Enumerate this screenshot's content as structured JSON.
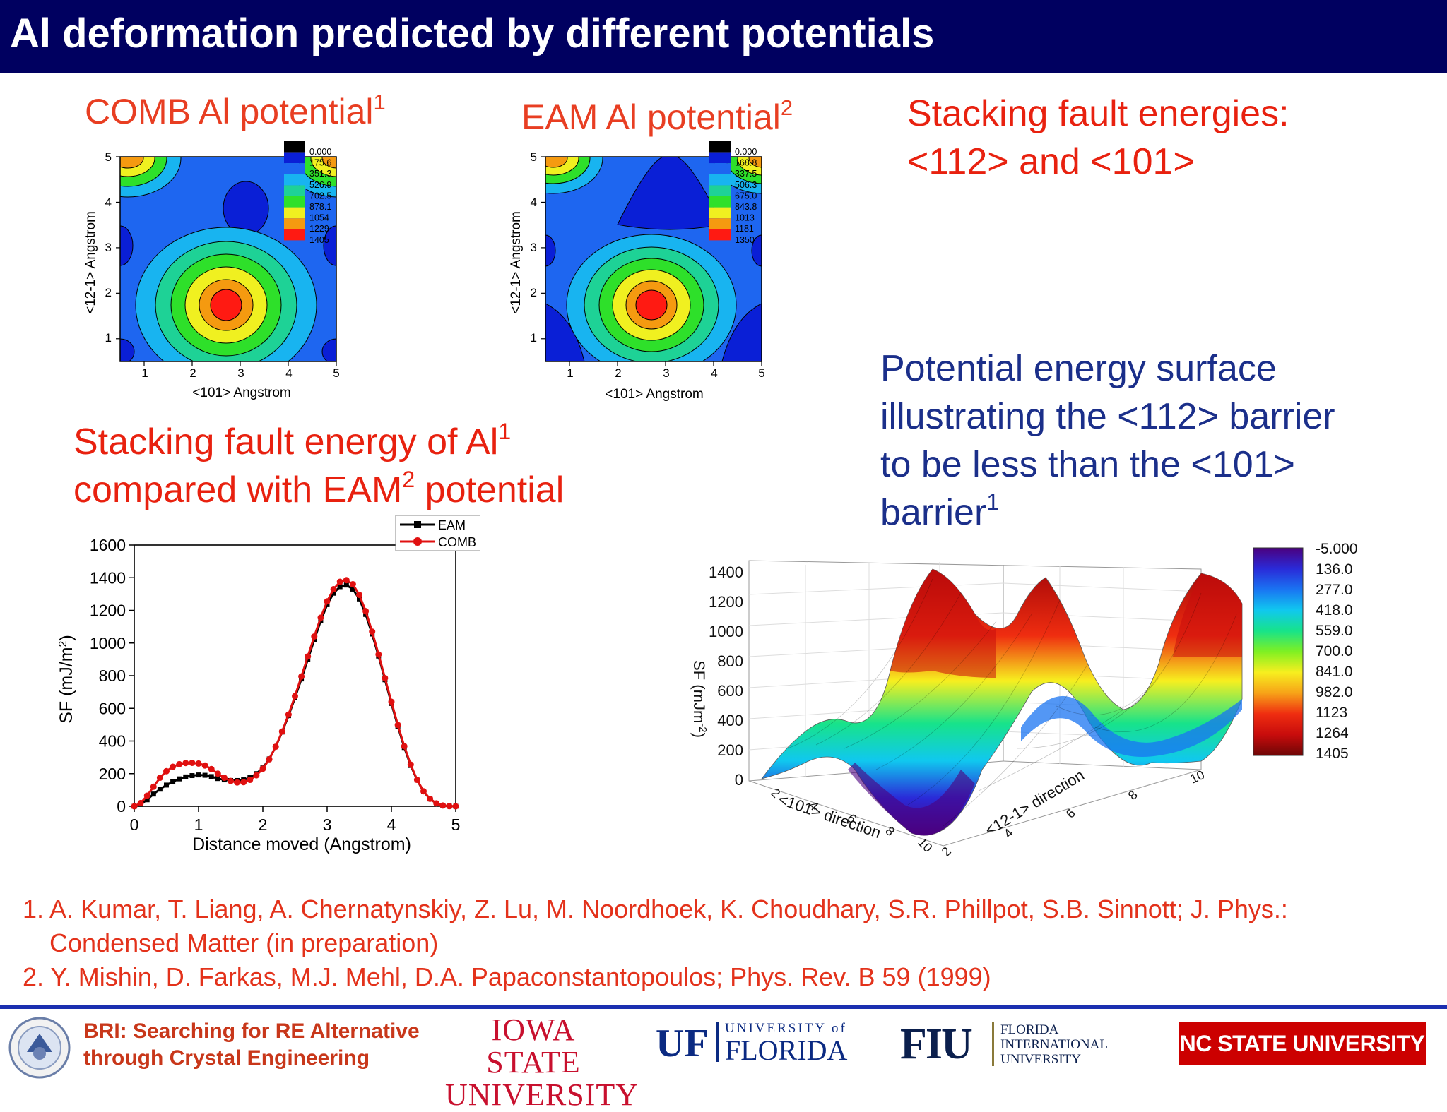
{
  "slide": {
    "title": "Al deformation predicted by different potentials",
    "comb_heading": "COMB Al potential",
    "comb_sup": "1",
    "eam_heading": "EAM Al potential",
    "eam_sup": "2",
    "sfe_heading_line1": "Stacking fault energies:",
    "sfe_heading_line2": "<112> and <101>",
    "sfe_compare_line1": "Stacking fault energy of Al",
    "sfe_compare_sup1": "1",
    "sfe_compare_line2a": "compared with EAM",
    "sfe_compare_sup2": "2",
    "sfe_compare_line2b": " potential",
    "pes_line1": "Potential energy surface",
    "pes_line2": "illustrating the <112> barrier",
    "pes_line3": "to be less than the <101>",
    "pes_line4": "barrier",
    "pes_sup": "1"
  },
  "references": {
    "ref1_line1": "1. A. Kumar, T. Liang, A. Chernatynskiy, Z. Lu, M. Noordhoek, K. Choudhary, S.R. Phillpot, S.B. Sinnott; J. Phys.:",
    "ref1_line2": "Condensed Matter (in preparation)",
    "ref2": "2. Y. Mishin, D. Farkas, M.J. Mehl, D.A. Papaconstantopoulos; Phys. Rev. B 59 (1999)"
  },
  "footer": {
    "bri_line1": "BRI:  Searching for RE Alternative",
    "bri_line2": "through  Crystal Engineering",
    "logo_isu_line1": "IOWA STATE",
    "logo_isu_line2": "UNIVERSITY",
    "logo_uf_mark": "UF",
    "logo_uf_top": "UNIVERSITY of",
    "logo_uf_bottom": "FLORIDA",
    "logo_fiu_mark": "FIU",
    "logo_fiu_line1": "FLORIDA",
    "logo_fiu_line2": "INTERNATIONAL",
    "logo_fiu_line3": "UNIVERSITY",
    "logo_ncsu": "NC STATE UNIVERSITY",
    "colors": {
      "title_bar": "#000060",
      "footer_rule": "#1b2fb0",
      "ncsu_red": "#cc0000",
      "isu_red": "#c8102e",
      "uf_blue": "#0b2a82"
    }
  },
  "chart_data": [
    {
      "id": "comb-contour",
      "type": "heatmap",
      "xlabel": "<101> Angstrom",
      "ylabel": "<12-1> Angstrom",
      "xlim": [
        0.5,
        5
      ],
      "ylim": [
        0.5,
        5
      ],
      "xticks": [
        "1",
        "2",
        "3",
        "4",
        "5"
      ],
      "yticks": [
        "1",
        "2",
        "3",
        "4",
        "5"
      ],
      "legend_levels": [
        "0.000",
        "175.6",
        "351.3",
        "526.9",
        "702.5",
        "878.1",
        "1054",
        "1229",
        "1405"
      ],
      "legend_colors": [
        "#000000",
        "#0a1fd6",
        "#1e66f0",
        "#18b4f0",
        "#1ed296",
        "#2ee02a",
        "#f0f020",
        "#f59a10",
        "#ff1a12"
      ],
      "max_location": [
        2.6,
        1.75
      ],
      "max_value": 1405
    },
    {
      "id": "eam-contour",
      "type": "heatmap",
      "xlabel": "<101> Angstrom",
      "ylabel": "<12-1> Angstrom",
      "xlim": [
        0.5,
        5
      ],
      "ylim": [
        0.5,
        5
      ],
      "xticks": [
        "1",
        "2",
        "3",
        "4",
        "5"
      ],
      "yticks": [
        "1",
        "2",
        "3",
        "4",
        "5"
      ],
      "legend_levels": [
        "0.000",
        "168.8",
        "337.5",
        "506.3",
        "675.0",
        "843.8",
        "1013",
        "1181",
        "1350"
      ],
      "legend_colors": [
        "#000000",
        "#0a1fd6",
        "#1e66f0",
        "#18b4f0",
        "#1ed296",
        "#2ee02a",
        "#f0f020",
        "#f59a10",
        "#ff1a12"
      ],
      "max_location": [
        2.6,
        1.75
      ],
      "max_value": 1350
    },
    {
      "id": "sf-line",
      "type": "line",
      "xlabel": "Distance moved (Angstrom)",
      "ylabel": "SF (mJ/m",
      "ylabel_sup": "2",
      "ylabel_end": ")",
      "xlim": [
        0,
        5
      ],
      "ylim": [
        0,
        1600
      ],
      "xticks": [
        0,
        1,
        2,
        3,
        4,
        5
      ],
      "yticks": [
        0,
        200,
        400,
        600,
        800,
        1000,
        1200,
        1400,
        1600
      ],
      "legend_position": "top-right",
      "series": [
        {
          "name": "EAM",
          "color": "#000000",
          "marker": "square",
          "x": [
            0,
            0.1,
            0.2,
            0.3,
            0.4,
            0.5,
            0.6,
            0.7,
            0.8,
            0.9,
            1.0,
            1.1,
            1.2,
            1.3,
            1.4,
            1.5,
            1.6,
            1.7,
            1.8,
            1.9,
            2.0,
            2.1,
            2.2,
            2.3,
            2.4,
            2.5,
            2.6,
            2.7,
            2.8,
            2.9,
            3.0,
            3.1,
            3.2,
            3.3,
            3.4,
            3.5,
            3.6,
            3.7,
            3.8,
            3.9,
            4.0,
            4.1,
            4.2,
            4.3,
            4.4,
            4.5,
            4.6,
            4.7,
            4.8,
            4.9,
            5.0
          ],
          "y": [
            0,
            12,
            40,
            75,
            105,
            130,
            150,
            168,
            180,
            188,
            192,
            190,
            182,
            170,
            162,
            158,
            158,
            162,
            175,
            200,
            235,
            290,
            365,
            455,
            555,
            665,
            780,
            900,
            1020,
            1135,
            1235,
            1305,
            1345,
            1355,
            1330,
            1270,
            1175,
            1055,
            920,
            775,
            630,
            490,
            360,
            250,
            160,
            90,
            45,
            18,
            5,
            1,
            0
          ]
        },
        {
          "name": "COMB",
          "color": "#e01010",
          "marker": "circle",
          "x": [
            0,
            0.1,
            0.2,
            0.3,
            0.4,
            0.5,
            0.6,
            0.7,
            0.8,
            0.9,
            1.0,
            1.1,
            1.2,
            1.3,
            1.4,
            1.5,
            1.6,
            1.7,
            1.8,
            1.9,
            2.0,
            2.1,
            2.2,
            2.3,
            2.4,
            2.5,
            2.6,
            2.7,
            2.8,
            2.9,
            3.0,
            3.1,
            3.2,
            3.3,
            3.4,
            3.5,
            3.6,
            3.7,
            3.8,
            3.9,
            4.0,
            4.1,
            4.2,
            4.3,
            4.4,
            4.5,
            4.6,
            4.7,
            4.8,
            4.9,
            5.0
          ],
          "y": [
            0,
            20,
            65,
            120,
            175,
            215,
            242,
            258,
            265,
            266,
            262,
            250,
            228,
            200,
            175,
            155,
            146,
            148,
            162,
            190,
            230,
            288,
            365,
            458,
            562,
            675,
            795,
            918,
            1040,
            1155,
            1255,
            1330,
            1375,
            1385,
            1360,
            1295,
            1195,
            1070,
            930,
            785,
            640,
            498,
            368,
            255,
            162,
            92,
            46,
            18,
            5,
            1,
            0
          ]
        }
      ]
    },
    {
      "id": "pes-3d",
      "type": "surface",
      "xlabel": "<101> direction",
      "ylabel": "<12-1> direction",
      "zlabel": "SF (mJm",
      "zlabel_sup": "-2",
      "zlabel_end": ")",
      "zticks": [
        "0",
        "200",
        "400",
        "600",
        "800",
        "1000",
        "1200",
        "1400"
      ],
      "xticks": [
        "2",
        "4",
        "6",
        "8",
        "10"
      ],
      "yticks": [
        "2",
        "4",
        "6",
        "8",
        "10"
      ],
      "colorbar_levels": [
        "-5.000",
        "136.0",
        "277.0",
        "418.0",
        "559.0",
        "700.0",
        "841.0",
        "982.0",
        "1123",
        "1264",
        "1405"
      ],
      "colorbar_colors": [
        "#4b007f",
        "#2a2ad8",
        "#1a74f2",
        "#10c8ef",
        "#17e38a",
        "#7ff022",
        "#f7ef1f",
        "#f7a218",
        "#ef2d10",
        "#c80c0c",
        "#6e0606"
      ]
    }
  ]
}
